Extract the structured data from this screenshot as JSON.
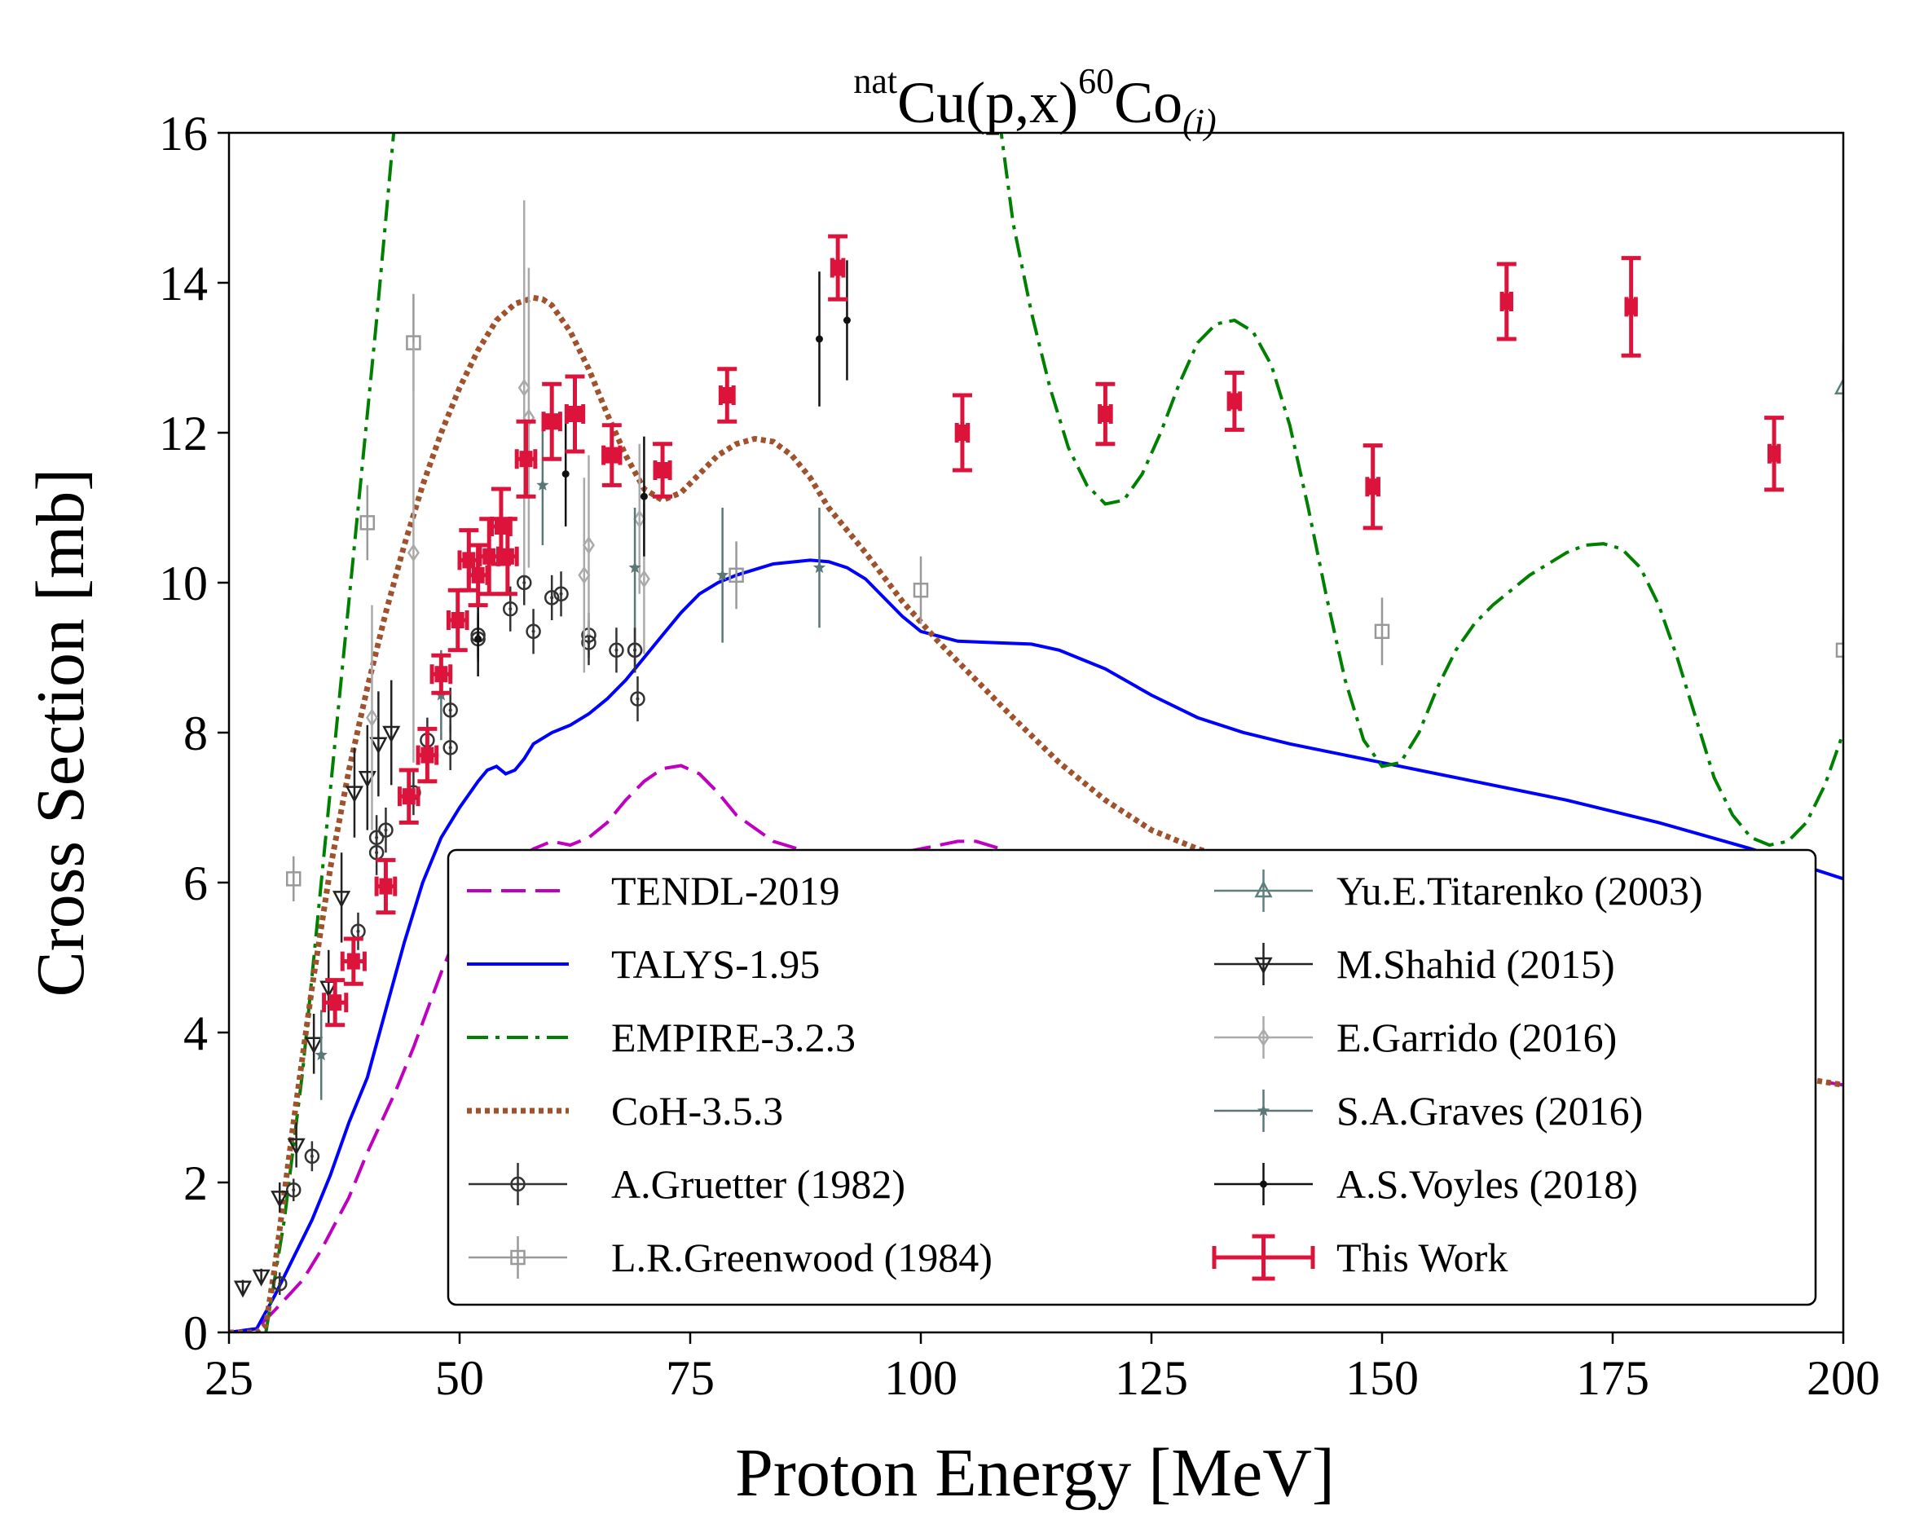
{
  "chart_data": {
    "type": "line",
    "title": {
      "sup1": "nat",
      "base1": "Cu(p,x)",
      "sup2": "60",
      "base2": "Co",
      "sub": "(i)"
    },
    "xlabel": "Proton Energy [MeV]",
    "ylabel": "Cross Section [mb]",
    "xlim": [
      25,
      200
    ],
    "ylim": [
      0,
      16
    ],
    "xticks": [
      25,
      50,
      75,
      100,
      125,
      150,
      175,
      200
    ],
    "yticks": [
      0,
      2,
      4,
      6,
      8,
      10,
      12,
      14,
      16
    ],
    "legend_position": "lower center",
    "series": [
      {
        "name": "TENDL-2019",
        "kind": "line",
        "color": "#c000c0",
        "dash": "dashed",
        "x": [
          25,
          28,
          30,
          33,
          35,
          38,
          40,
          43,
          45,
          48,
          50,
          53,
          55,
          58,
          60,
          62,
          64,
          66,
          68,
          70,
          72,
          74,
          76,
          78,
          80,
          84,
          88,
          92,
          96,
          100,
          104,
          106,
          110,
          115,
          120,
          130,
          140,
          150,
          160,
          170,
          180,
          190,
          200
        ],
        "y": [
          0,
          0.05,
          0.3,
          0.7,
          1.1,
          1.8,
          2.4,
          3.2,
          3.8,
          4.8,
          5.4,
          5.9,
          6.2,
          6.45,
          6.55,
          6.5,
          6.6,
          6.8,
          7.1,
          7.35,
          7.52,
          7.56,
          7.45,
          7.2,
          6.9,
          6.55,
          6.4,
          6.3,
          6.35,
          6.45,
          6.55,
          6.55,
          6.4,
          6.1,
          5.8,
          5.3,
          4.9,
          4.5,
          4.2,
          3.9,
          3.7,
          3.5,
          3.3
        ]
      },
      {
        "name": "TALYS-1.95",
        "kind": "line",
        "color": "#0000ff",
        "dash": "solid",
        "x": [
          25,
          28,
          30,
          32,
          34,
          36,
          38,
          40,
          42,
          44,
          46,
          48,
          50,
          52,
          53,
          54,
          55,
          56,
          57,
          58,
          60,
          62,
          64,
          66,
          68,
          70,
          72,
          74,
          76,
          78,
          80,
          84,
          88,
          90,
          92,
          94,
          96,
          98,
          100,
          104,
          108,
          112,
          115,
          118,
          120,
          125,
          130,
          135,
          140,
          150,
          160,
          170,
          180,
          190,
          200
        ],
        "y": [
          0,
          0.05,
          0.5,
          1.0,
          1.5,
          2.1,
          2.8,
          3.4,
          4.3,
          5.2,
          6.0,
          6.6,
          7.0,
          7.35,
          7.5,
          7.55,
          7.45,
          7.5,
          7.65,
          7.85,
          8.0,
          8.1,
          8.25,
          8.45,
          8.7,
          9.0,
          9.3,
          9.6,
          9.85,
          10.0,
          10.1,
          10.25,
          10.3,
          10.28,
          10.2,
          10.05,
          9.8,
          9.55,
          9.35,
          9.22,
          9.2,
          9.18,
          9.1,
          8.95,
          8.85,
          8.5,
          8.2,
          8.0,
          7.85,
          7.6,
          7.35,
          7.1,
          6.8,
          6.45,
          6.05
        ]
      },
      {
        "name": "EMPIRE-3.2.3",
        "kind": "line",
        "color": "#008000",
        "dash": "dashdot",
        "x": [
          29,
          31,
          33,
          35,
          37,
          39,
          41,
          43
        ],
        "y": [
          0,
          1.5,
          3.5,
          6.0,
          8.5,
          11.0,
          13.5,
          16.2
        ],
        "x2": [
          108.5,
          110,
          112,
          114,
          116,
          118,
          120,
          122,
          124,
          126,
          128,
          130,
          132,
          134,
          136,
          138,
          140,
          142,
          144,
          146,
          148,
          150,
          152,
          154,
          156,
          158,
          160,
          162,
          164,
          166,
          168,
          170,
          172,
          174,
          176,
          178,
          180,
          182,
          184,
          186,
          188,
          190,
          192,
          194,
          196,
          198,
          200
        ],
        "y2": [
          16.2,
          14.8,
          13.6,
          12.6,
          11.8,
          11.3,
          11.05,
          11.1,
          11.45,
          12.0,
          12.65,
          13.2,
          13.45,
          13.5,
          13.35,
          12.9,
          12.1,
          11.0,
          9.8,
          8.7,
          7.9,
          7.55,
          7.6,
          8.0,
          8.6,
          9.1,
          9.45,
          9.7,
          9.9,
          10.1,
          10.25,
          10.4,
          10.5,
          10.52,
          10.45,
          10.2,
          9.7,
          9.0,
          8.2,
          7.4,
          6.9,
          6.6,
          6.5,
          6.55,
          6.8,
          7.3,
          8.0
        ]
      },
      {
        "name": "CoH-3.5.3",
        "kind": "line",
        "color": "#a0522d",
        "dash": "dotted",
        "x": [
          25,
          28,
          29,
          30,
          32,
          34,
          36,
          38,
          40,
          42,
          44,
          46,
          48,
          50,
          52,
          54,
          56,
          58,
          59,
          60,
          62,
          64,
          66,
          68,
          70,
          72,
          74,
          76,
          78,
          80,
          82,
          84,
          86,
          88,
          90,
          94,
          98,
          102,
          106,
          110,
          115,
          120,
          125,
          130,
          135,
          140,
          145,
          150,
          160,
          170,
          180,
          190,
          200
        ],
        "y": [
          0,
          0,
          0.1,
          0.9,
          2.8,
          4.6,
          6.2,
          7.5,
          8.6,
          9.6,
          10.5,
          11.3,
          12.0,
          12.6,
          13.1,
          13.5,
          13.72,
          13.8,
          13.78,
          13.7,
          13.35,
          12.85,
          12.25,
          11.7,
          11.25,
          11.1,
          11.2,
          11.45,
          11.7,
          11.85,
          11.92,
          11.88,
          11.7,
          11.4,
          11.0,
          10.4,
          9.75,
          9.2,
          8.7,
          8.2,
          7.6,
          7.1,
          6.7,
          6.45,
          6.25,
          6.1,
          5.9,
          5.6,
          5.0,
          4.4,
          3.9,
          3.5,
          3.3
        ]
      },
      {
        "name": "A.Gruetter (1982)",
        "kind": "points",
        "marker": "circle-dot",
        "color": "#333333",
        "x": [
          30.5,
          32,
          34,
          39,
          41,
          42,
          45,
          49,
          52,
          55.5,
          58,
          61,
          64,
          67,
          69,
          69.3,
          41,
          46.5,
          49,
          52,
          57,
          60,
          64,
          69
        ],
        "y": [
          0.65,
          1.9,
          2.35,
          5.35,
          6.4,
          6.7,
          7.2,
          7.8,
          9.25,
          9.65,
          9.35,
          9.85,
          9.2,
          9.1,
          9.1,
          8.45,
          6.6,
          7.9,
          8.3,
          9.3,
          10.0,
          9.8,
          9.3,
          9.1
        ],
        "yerr": [
          0.15,
          0.15,
          0.2,
          0.25,
          0.3,
          0.3,
          0.3,
          0.3,
          0.3,
          0.3,
          0.3,
          0.3,
          0.3,
          0.3,
          0.3,
          0.3,
          0.3,
          0.3,
          0.3,
          0.3,
          0.3,
          0.3,
          0.3,
          0.3
        ]
      },
      {
        "name": "L.R.Greenwood (1984)",
        "kind": "points",
        "marker": "square-open",
        "color": "#999999",
        "x": [
          32,
          40,
          45,
          80,
          100,
          150,
          200
        ],
        "y": [
          6.05,
          10.8,
          13.2,
          10.1,
          9.9,
          9.35,
          9.1
        ],
        "yerr": [
          0.3,
          0.5,
          0.65,
          0.45,
          0.45,
          0.45,
          0.45
        ]
      },
      {
        "name": "Yu.E.Titarenko (2003)",
        "kind": "points",
        "marker": "triangle-up-open",
        "color": "#5f7f7f",
        "x": [
          200
        ],
        "y": [
          12.6
        ],
        "yerr": [
          0.6
        ]
      },
      {
        "name": "M.Shahid (2015)",
        "kind": "points",
        "marker": "triangle-down-open",
        "color": "#222222",
        "x": [
          26.5,
          28.5,
          30.5,
          32.3,
          34.2,
          35.8,
          37.2,
          38.6,
          40,
          41.2,
          42.6
        ],
        "y": [
          0.6,
          0.75,
          1.8,
          2.5,
          3.85,
          4.6,
          5.8,
          7.2,
          7.4,
          7.85,
          8.0
        ],
        "yerr": [
          0.1,
          0.1,
          0.2,
          0.3,
          0.4,
          0.5,
          0.6,
          0.6,
          0.7,
          0.7,
          0.7
        ]
      },
      {
        "name": "E.Garrido (2016)",
        "kind": "points",
        "marker": "diamond-open",
        "color": "#aaaaaa",
        "x": [
          40.5,
          45,
          57,
          57.5,
          63.5,
          64,
          69.5,
          70
        ],
        "y": [
          8.2,
          10.4,
          12.6,
          12.2,
          10.1,
          10.5,
          10.85,
          10.05
        ],
        "yerr": [
          1.5,
          2.8,
          2.5,
          2.0,
          1.3,
          1.2,
          1.0,
          1.0
        ]
      },
      {
        "name": "S.A.Graves (2016)",
        "kind": "points",
        "marker": "star",
        "color": "#5a7878",
        "x": [
          35,
          48,
          59,
          69,
          78.5,
          89
        ],
        "y": [
          3.7,
          8.5,
          11.3,
          10.2,
          10.1,
          10.2
        ],
        "yerr": [
          0.6,
          0.6,
          0.8,
          0.8,
          0.9,
          0.8
        ]
      },
      {
        "name": "A.S.Voyles (2018)",
        "kind": "points",
        "marker": "dot",
        "color": "#111111",
        "x": [
          52,
          61.5,
          70,
          89,
          92
        ],
        "y": [
          9.25,
          11.45,
          11.15,
          13.25,
          13.5
        ],
        "yerr": [
          0.5,
          0.7,
          0.8,
          0.9,
          0.8
        ]
      },
      {
        "name": "This Work",
        "kind": "points",
        "marker": "square-filled",
        "color": "#dc143c",
        "x": [
          36.5,
          38.5,
          42,
          44.5,
          46.5,
          48,
          49.8,
          51,
          52,
          53.2,
          54.5,
          55.2,
          57.2,
          60,
          62.5,
          66.5,
          72,
          79,
          91,
          104.5,
          120,
          134,
          149,
          163.5,
          177,
          192.5
        ],
        "y": [
          4.4,
          4.95,
          5.95,
          7.15,
          7.7,
          8.78,
          9.5,
          10.3,
          10.1,
          10.35,
          10.75,
          10.35,
          11.65,
          12.15,
          12.25,
          11.7,
          11.5,
          12.5,
          14.2,
          12.0,
          12.25,
          12.42,
          11.28,
          13.75,
          13.68,
          11.72
        ],
        "yerr": [
          0.3,
          0.3,
          0.35,
          0.35,
          0.35,
          0.25,
          0.4,
          0.4,
          0.4,
          0.5,
          0.5,
          0.5,
          0.5,
          0.5,
          0.5,
          0.4,
          0.35,
          0.35,
          0.42,
          0.5,
          0.4,
          0.38,
          0.55,
          0.5,
          0.65,
          0.48
        ],
        "xerr": [
          1.2,
          1.2,
          1.0,
          1.0,
          1.0,
          1.0,
          1.0,
          1.0,
          1.0,
          1.0,
          1.0,
          1.0,
          1.0,
          0.9,
          0.9,
          0.9,
          0.8,
          0.7,
          0.6,
          0.6,
          0.6,
          0.6,
          0.6,
          0.5,
          0.5,
          0.5
        ]
      }
    ]
  }
}
